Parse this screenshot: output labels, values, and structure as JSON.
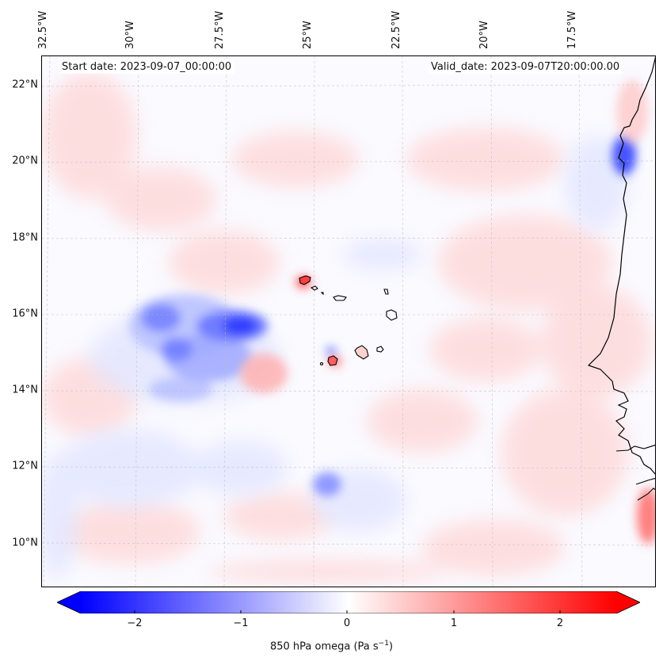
{
  "map": {
    "start_date": "Start date: 2023-09-07_00:00:00",
    "valid_date": "Valid_date: 2023-09-07T20:00:00.00",
    "longitude_labels": [
      "32.5°W",
      "30°W",
      "27.5°W",
      "25°W",
      "22.5°W",
      "20°W",
      "17.5°W"
    ],
    "latitude_labels": [
      "22°N",
      "20°N",
      "18°N",
      "16°N",
      "14°N",
      "12°N",
      "10°N"
    ],
    "gridlines": "dashed",
    "field": "850 hPa omega",
    "colors": {
      "negative": "#0000ff",
      "zero": "#ffffff",
      "positive": "#ff0000",
      "coastline": "#000000"
    }
  },
  "colorbar": {
    "label_main": "850 hPa omega (Pa s",
    "label_exp": "−1",
    "label_close": ")",
    "ticks": [
      "−2",
      "−1",
      "0",
      "1",
      "2"
    ],
    "tick_values": [
      -2,
      -1,
      0,
      1,
      2
    ],
    "range": [
      -2.5,
      2.5
    ],
    "extend": "both"
  }
}
